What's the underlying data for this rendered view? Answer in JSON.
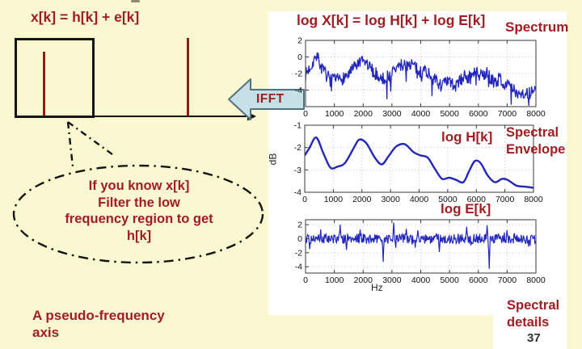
{
  "slide": {
    "page_number": "37",
    "left_diagram": {
      "title": "x[k] = h[k] + e[k]",
      "ifft_label": "IFFT",
      "bubble_text": "If you know x[k]\nFilter the low\nfrequency region to get\nh[k]",
      "axis_caption": "A pseudo-frequency\naxis"
    },
    "right_panel": {
      "equation": "log X[k] = log H[k] + log E[k]",
      "spectrum_label": "Spectrum",
      "spectral_envelope_label": "Spectral\nEnvelope",
      "spectral_details_label": "Spectral\ndetails",
      "log_h_label": "log H[k]",
      "log_e_label": "log E[k]",
      "db_label": "dB",
      "hz_label": "Hz"
    },
    "colors": {
      "background": "#FAF8D1",
      "panel": "#FFFFFF",
      "accent_red": "#A11D22",
      "signal_blue": "#2326BC",
      "impulse_maroon": "#8E1D12",
      "arrow_fill": "#C5E1E5",
      "arrow_stroke": "#54717C",
      "grid_gray": "#C6C6C6",
      "axis_dark": "#141414"
    }
  },
  "chart_data": [
    {
      "id": "spectrum",
      "type": "line",
      "render": "noisy_envelope",
      "title": "log X[k] = log H[k] + log E[k]",
      "annotation": "Spectrum",
      "xlabel": "",
      "ylabel": "",
      "xlim": [
        0,
        8000
      ],
      "ylim": [
        -6,
        2
      ],
      "xticks": [
        0,
        1000,
        2000,
        3000,
        4000,
        5000,
        6000,
        7000,
        8000
      ],
      "yticks": [
        2,
        0,
        -2,
        -4
      ],
      "grid": true,
      "line_color": "#2326BC",
      "envelope_x": [
        0,
        200,
        380,
        600,
        900,
        1200,
        1500,
        1800,
        2050,
        2400,
        2700,
        3000,
        3300,
        3700,
        3950,
        4150,
        4450,
        4700,
        5000,
        5200,
        5500,
        5700,
        5900,
        6100,
        6300,
        6550,
        6750,
        7000,
        7300,
        7600,
        8000
      ],
      "envelope_y": [
        -2.1,
        -1.0,
        0.3,
        -1.7,
        -2.9,
        -2.7,
        -2.1,
        -0.9,
        -0.6,
        -1.9,
        -2.7,
        -1.9,
        -1.0,
        -0.8,
        -1.9,
        -1.5,
        -2.7,
        -3.4,
        -3.0,
        -3.6,
        -2.3,
        -2.5,
        -1.9,
        -2.4,
        -2.0,
        -3.1,
        -2.6,
        -3.4,
        -4.2,
        -4.4,
        -4.3
      ],
      "noise_amplitude": 0.8,
      "num_points": 420,
      "seed": 7
    },
    {
      "id": "spectral-envelope",
      "type": "line",
      "render": "smooth",
      "annotation": "log H[k]",
      "side_label": "Spectral Envelope",
      "xlabel": "",
      "ylabel": "dB",
      "xlim": [
        0,
        8000
      ],
      "ylim": [
        -4,
        -1
      ],
      "xticks": [
        0,
        1000,
        2000,
        3000,
        4000,
        5000,
        6000,
        7000,
        8000
      ],
      "yticks": [
        -1,
        -2,
        -3,
        -4
      ],
      "grid": true,
      "line_color": "#2326BC",
      "points_x": [
        0,
        150,
        400,
        650,
        900,
        1150,
        1400,
        1700,
        1900,
        2150,
        2450,
        2700,
        2950,
        3200,
        3500,
        3800,
        4050,
        4300,
        4550,
        4800,
        5050,
        5300,
        5550,
        5750,
        5950,
        6150,
        6400,
        6650,
        6900,
        7100,
        7400,
        7700,
        8000
      ],
      "points_y": [
        -2.35,
        -2.05,
        -1.55,
        -2.25,
        -2.9,
        -2.85,
        -2.7,
        -2.05,
        -1.65,
        -1.8,
        -2.45,
        -2.75,
        -2.35,
        -1.95,
        -1.85,
        -2.2,
        -2.35,
        -2.45,
        -2.95,
        -3.4,
        -3.35,
        -3.45,
        -3.55,
        -3.05,
        -2.6,
        -2.7,
        -3.25,
        -3.55,
        -3.4,
        -3.45,
        -3.7,
        -3.75,
        -3.8
      ]
    },
    {
      "id": "spectral-details",
      "type": "line",
      "render": "noise_spikes",
      "annotation": "log E[k]",
      "side_label": "Spectral details",
      "xlabel": "Hz",
      "ylabel": "",
      "xlim": [
        0,
        8000
      ],
      "ylim": [
        -4.9,
        2.7
      ],
      "xticks": [
        0,
        1000,
        2000,
        3000,
        4000,
        5000,
        6000,
        7000,
        8000
      ],
      "yticks": [
        2,
        0,
        -2,
        -4
      ],
      "grid": true,
      "line_color": "#2326BC",
      "baseline": 0,
      "noise_amplitude": 0.7,
      "num_points": 440,
      "seed": 5,
      "spikes": [
        {
          "x": 150,
          "y": -1.5
        },
        {
          "x": 1200,
          "y": 2.0
        },
        {
          "x": 1430,
          "y": -1.6
        },
        {
          "x": 1900,
          "y": 1.3
        },
        {
          "x": 2700,
          "y": -3.3
        },
        {
          "x": 3060,
          "y": 2.3
        },
        {
          "x": 3500,
          "y": 1.4
        },
        {
          "x": 3900,
          "y": 1.2
        },
        {
          "x": 4650,
          "y": -1.9
        },
        {
          "x": 5600,
          "y": 1.7
        },
        {
          "x": 6300,
          "y": 1.9
        },
        {
          "x": 6380,
          "y": -4.3
        },
        {
          "x": 7000,
          "y": 1.2
        }
      ]
    }
  ]
}
